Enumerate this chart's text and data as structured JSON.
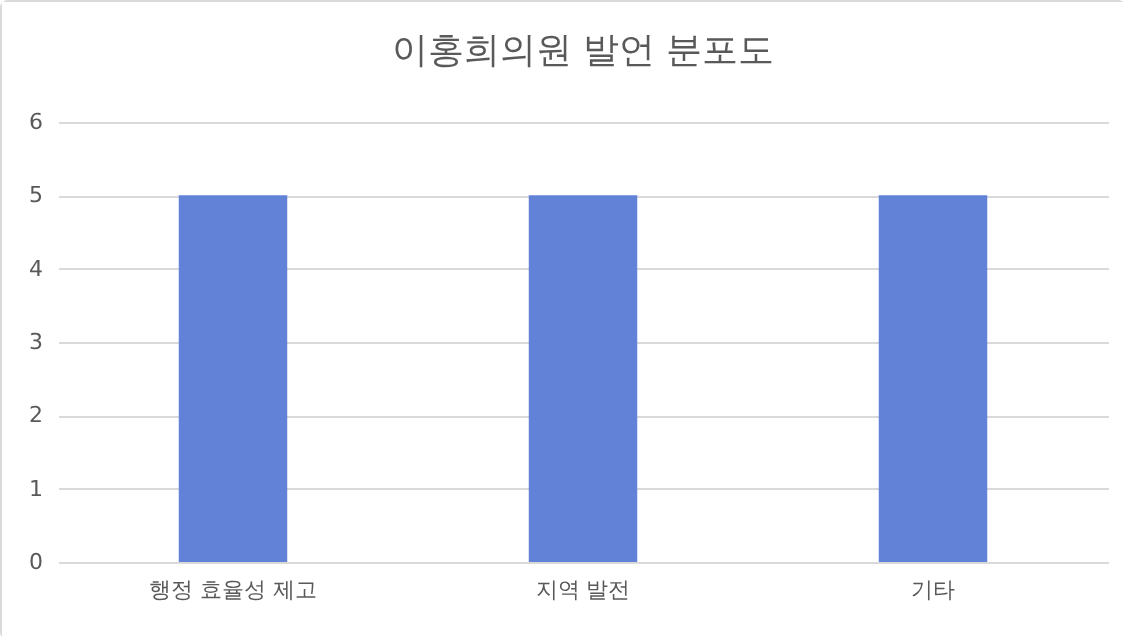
{
  "chart_data": {
    "type": "bar",
    "title": "이홍희의원 발언 분포도",
    "categories": [
      "행정 효율성 제고",
      "지역 발전",
      "기타"
    ],
    "values": [
      5,
      5,
      5
    ],
    "color": "#6282d8",
    "ylim": [
      0,
      6
    ],
    "yticks": [
      0,
      1,
      2,
      3,
      4,
      5,
      6
    ],
    "grid": "y"
  }
}
